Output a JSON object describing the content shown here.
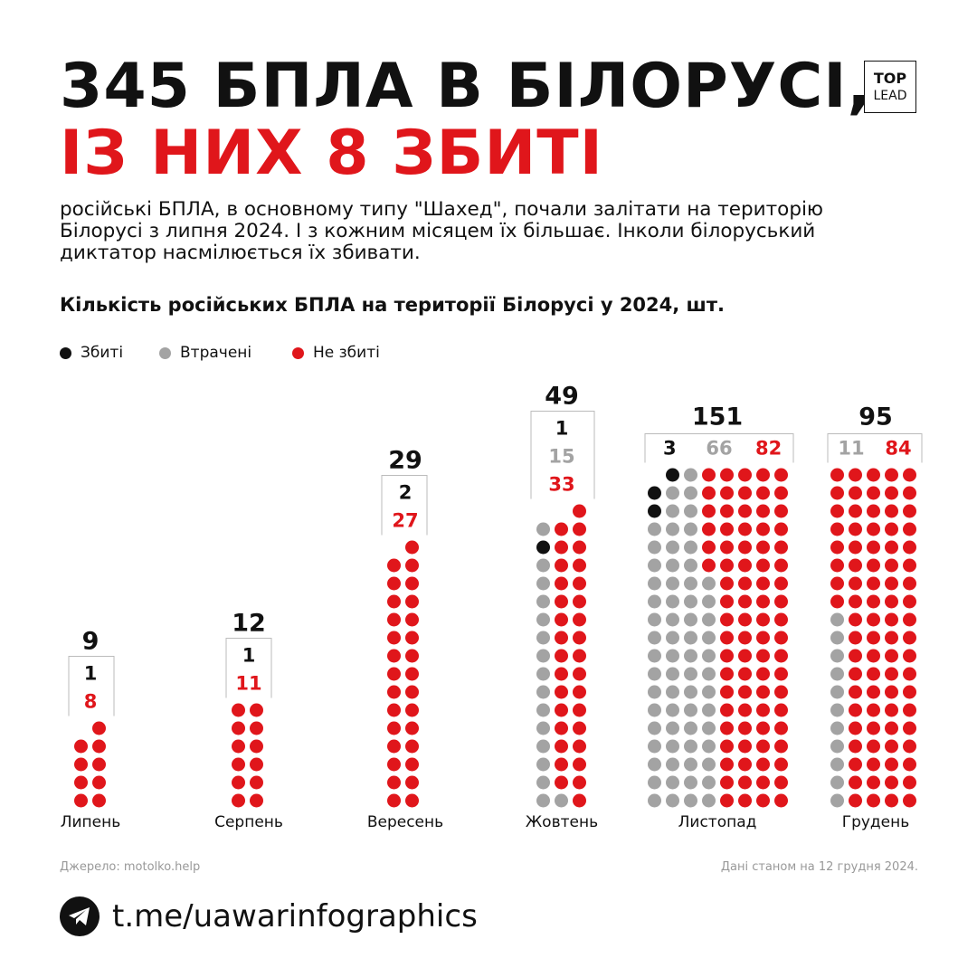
{
  "header": {
    "title_line1": "345 БПЛА В БІЛОРУСІ,",
    "title_line2": "ІЗ НИХ 8 ЗБИТІ",
    "intro": "російські БПЛА, в основному типу \"Шахед\", почали залітати на територію Білорусі з липня 2024. І з кожним місяцем їх більшає. Інколи білоруський диктатор насмілюється їх збивати.",
    "chart_title": "Кількість російських БПЛА на території Білорусі у 2024, шт."
  },
  "logo": {
    "line1": "TOP",
    "line2": "LEAD"
  },
  "legend": [
    {
      "label": "Збиті",
      "color": "#111111"
    },
    {
      "label": "Втрачені",
      "color": "#a3a3a3"
    },
    {
      "label": "Не збиті",
      "color": "#e0161b"
    }
  ],
  "chart_data": {
    "type": "dot_matrix",
    "title": "Кількість російських БПЛА на території Білорусі у 2024, шт.",
    "categories": [
      "Липень",
      "Серпень",
      "Вересень",
      "Жовтень",
      "Листопад",
      "Грудень"
    ],
    "totals": [
      9,
      12,
      29,
      49,
      151,
      95
    ],
    "series": [
      {
        "name": "Збиті",
        "color": "#111111",
        "values": [
          1,
          1,
          2,
          1,
          3,
          0
        ]
      },
      {
        "name": "Втрачені",
        "color": "#a3a3a3",
        "values": [
          0,
          0,
          0,
          15,
          66,
          11
        ]
      },
      {
        "name": "Не збиті",
        "color": "#e0161b",
        "values": [
          8,
          11,
          27,
          33,
          82,
          84
        ]
      }
    ],
    "dots_per_row": [
      2,
      2,
      2,
      3,
      8,
      5
    ]
  },
  "footer": {
    "source": "Джерело: motolko.help",
    "as_of": "Дані станом на 12 грудня 2024.",
    "telegram_icon": "telegram-icon",
    "handle": "t.me/uawarinfographics"
  }
}
